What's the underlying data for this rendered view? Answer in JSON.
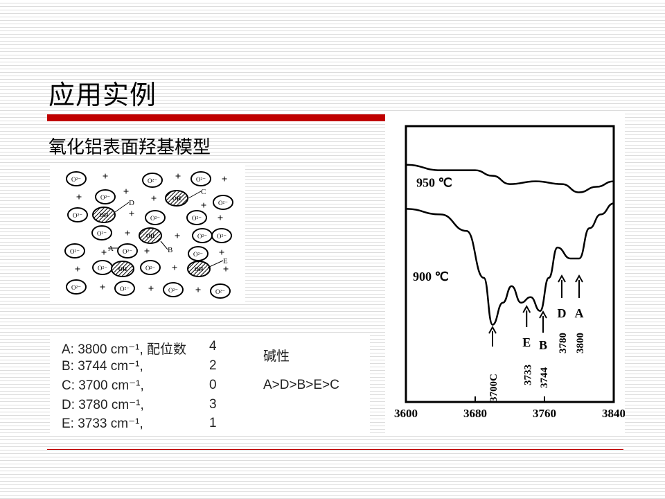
{
  "slide": {
    "title": "应用实例",
    "subtitle": "氧化铝表面羟基模型"
  },
  "diagram": {
    "oxide_label": "O²⁻",
    "hydroxyl_label": "OH",
    "cation_symbol": "+",
    "site_labels": [
      "A",
      "B",
      "C",
      "D",
      "E"
    ]
  },
  "info_table": {
    "rows": [
      {
        "text": "A: 3800 cm⁻¹, 配位数",
        "coord": "4"
      },
      {
        "text": "B: 3744 cm⁻¹,",
        "coord": "2"
      },
      {
        "text": "C: 3700 cm⁻¹,",
        "coord": "0"
      },
      {
        "text": "D: 3780 cm⁻¹,",
        "coord": "3"
      },
      {
        "text": "E: 3733 cm⁻¹,",
        "coord": "1"
      }
    ],
    "basicity_label": "碱性",
    "basicity_order": "A>D>B>E>C"
  },
  "chart_data": {
    "type": "line",
    "xlim": [
      3600,
      3840
    ],
    "xticks": [
      "3600",
      "3680",
      "3760",
      "3840"
    ],
    "series": [
      {
        "name": "950 ℃",
        "x": [
          3600,
          3640,
          3680,
          3700,
          3720,
          3750,
          3780,
          3800,
          3820,
          3840
        ],
        "y": [
          0.86,
          0.84,
          0.84,
          0.82,
          0.79,
          0.8,
          0.79,
          0.76,
          0.78,
          0.8
        ]
      },
      {
        "name": "900 ℃",
        "x": [
          3600,
          3640,
          3670,
          3690,
          3700,
          3712,
          3722,
          3733,
          3744,
          3755,
          3765,
          3775,
          3790,
          3800,
          3812,
          3825,
          3840
        ],
        "y": [
          0.7,
          0.68,
          0.62,
          0.45,
          0.28,
          0.36,
          0.42,
          0.36,
          0.38,
          0.33,
          0.45,
          0.56,
          0.52,
          0.52,
          0.63,
          0.68,
          0.72
        ]
      }
    ],
    "annotations": [
      {
        "letter": "C",
        "wavenumber": "3700",
        "x": 3700
      },
      {
        "letter": "E",
        "wavenumber": "3733",
        "x": 3733
      },
      {
        "letter": "B",
        "wavenumber": "3744",
        "x": 3744
      },
      {
        "letter": "D",
        "wavenumber": "3780",
        "x": 3780
      },
      {
        "letter": "A",
        "wavenumber": "3800",
        "x": 3800
      }
    ]
  }
}
